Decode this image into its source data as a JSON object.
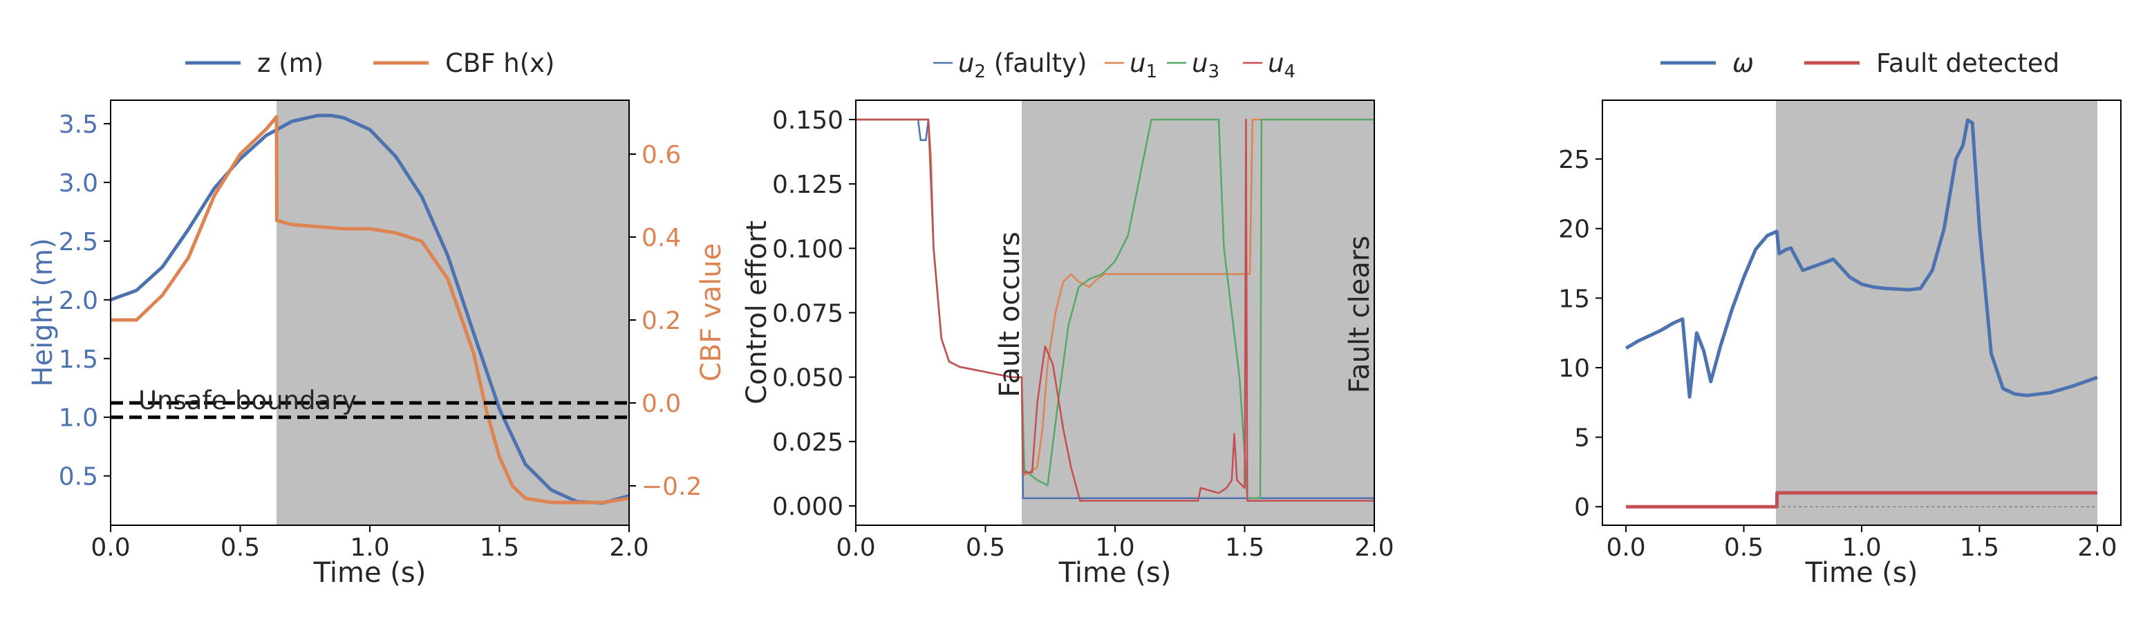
{
  "colors": {
    "blue": "#4c72b0",
    "orange": "#dd8452",
    "green": "#55a868",
    "red": "#c44e52",
    "shade": "#bfbfbf",
    "black": "#000000"
  },
  "chart_data": [
    {
      "type": "line",
      "panel": "height-cbf",
      "xlabel": "Time (s)",
      "ylabel": "Height (m)",
      "ylabel_right": "CBF value",
      "xlim": [
        0.0,
        2.0
      ],
      "ylim": [
        0.08,
        3.7
      ],
      "ylim_right": [
        -0.295,
        0.73
      ],
      "x_ticks": [
        "0.0",
        "0.5",
        "1.0",
        "1.5",
        "2.0"
      ],
      "y_ticks": [
        "0.5",
        "1.0",
        "1.5",
        "2.0",
        "2.5",
        "3.0",
        "3.5"
      ],
      "y_ticks_right": [
        "−0.2",
        "0.0",
        "0.2",
        "0.4",
        "0.6"
      ],
      "legend": {
        "placement": "top",
        "entries": [
          "z (m)",
          "CBF h(x)"
        ]
      },
      "shaded_region": [
        0.64,
        2.0
      ],
      "annotation": "Unsafe boundary",
      "series": [
        {
          "name": "z (m)",
          "axis": "left",
          "color": "blue",
          "x": [
            0.0,
            0.1,
            0.2,
            0.3,
            0.4,
            0.5,
            0.6,
            0.7,
            0.8,
            0.85,
            0.9,
            1.0,
            1.1,
            1.2,
            1.3,
            1.4,
            1.5,
            1.6,
            1.7,
            1.8,
            1.9,
            2.0
          ],
          "y": [
            2.0,
            2.08,
            2.28,
            2.6,
            2.95,
            3.2,
            3.4,
            3.52,
            3.57,
            3.57,
            3.55,
            3.45,
            3.22,
            2.88,
            2.38,
            1.72,
            1.07,
            0.6,
            0.38,
            0.28,
            0.27,
            0.33
          ]
        },
        {
          "name": "CBF h(x)",
          "axis": "right",
          "color": "orange",
          "x": [
            0.0,
            0.1,
            0.2,
            0.3,
            0.4,
            0.5,
            0.6,
            0.64,
            0.641,
            0.7,
            0.8,
            0.9,
            1.0,
            1.1,
            1.2,
            1.3,
            1.4,
            1.45,
            1.5,
            1.55,
            1.6,
            1.7,
            1.8,
            1.9,
            2.0
          ],
          "y": [
            0.2,
            0.2,
            0.26,
            0.35,
            0.5,
            0.6,
            0.66,
            0.69,
            0.44,
            0.43,
            0.425,
            0.42,
            0.42,
            0.41,
            0.39,
            0.3,
            0.12,
            -0.02,
            -0.13,
            -0.2,
            -0.23,
            -0.24,
            -0.24,
            -0.24,
            -0.23
          ]
        },
        {
          "name": "Unsafe boundary (z = 1.0)",
          "axis": "left",
          "color": "black",
          "dashed": true,
          "x": [
            0.0,
            2.0
          ],
          "y": [
            1.0,
            1.0
          ]
        },
        {
          "name": "Unsafe boundary (h = 0)",
          "axis": "right",
          "color": "black",
          "dashed": true,
          "x": [
            0.0,
            2.0
          ],
          "y": [
            0.0,
            0.0
          ]
        }
      ]
    },
    {
      "type": "line",
      "panel": "control-effort",
      "xlabel": "Time (s)",
      "ylabel": "Control effort",
      "xlim": [
        0.0,
        2.0
      ],
      "ylim": [
        -0.0075,
        0.1575
      ],
      "x_ticks": [
        "0.0",
        "0.5",
        "1.0",
        "1.5",
        "2.0"
      ],
      "y_ticks": [
        "0.000",
        "0.025",
        "0.050",
        "0.075",
        "0.100",
        "0.125",
        "0.150"
      ],
      "legend": {
        "placement": "top",
        "entries": [
          "u2 (faulty)",
          "u1",
          "u3",
          "u4"
        ]
      },
      "shaded_region": [
        0.64,
        2.0
      ],
      "annotations": [
        "Fault occurs",
        "Fault clears"
      ],
      "series": [
        {
          "name": "u2 (faulty)",
          "color": "blue",
          "x": [
            0.0,
            0.24,
            0.25,
            0.27,
            0.28,
            0.3,
            0.33,
            0.36,
            0.4,
            0.5,
            0.6,
            0.64,
            0.645,
            0.8,
            1.0,
            1.5,
            2.0
          ],
          "y": [
            0.15,
            0.15,
            0.142,
            0.142,
            0.15,
            0.1,
            0.065,
            0.056,
            0.054,
            0.052,
            0.05,
            0.05,
            0.003,
            0.003,
            0.003,
            0.003,
            0.003
          ]
        },
        {
          "name": "u1",
          "color": "orange",
          "x": [
            0.0,
            0.28,
            0.29,
            0.3,
            0.33,
            0.36,
            0.4,
            0.5,
            0.6,
            0.64,
            0.65,
            0.7,
            0.72,
            0.74,
            0.77,
            0.8,
            0.83,
            0.86,
            0.9,
            0.93,
            0.96,
            1.0,
            1.52,
            1.53,
            2.0
          ],
          "y": [
            0.15,
            0.15,
            0.135,
            0.1,
            0.065,
            0.056,
            0.054,
            0.052,
            0.05,
            0.05,
            0.012,
            0.015,
            0.03,
            0.055,
            0.075,
            0.087,
            0.09,
            0.087,
            0.085,
            0.088,
            0.09,
            0.09,
            0.09,
            0.15,
            0.15
          ]
        },
        {
          "name": "u3",
          "color": "green",
          "x": [
            0.0,
            0.28,
            0.29,
            0.3,
            0.33,
            0.36,
            0.4,
            0.5,
            0.6,
            0.64,
            0.65,
            0.7,
            0.74,
            0.78,
            0.82,
            0.86,
            0.9,
            0.95,
            1.0,
            1.05,
            1.1,
            1.14,
            1.4,
            1.42,
            1.45,
            1.48,
            1.5,
            1.51,
            1.56,
            1.565,
            2.0
          ],
          "y": [
            0.15,
            0.15,
            0.128,
            0.1,
            0.065,
            0.056,
            0.054,
            0.052,
            0.05,
            0.05,
            0.014,
            0.01,
            0.008,
            0.04,
            0.07,
            0.085,
            0.088,
            0.09,
            0.095,
            0.105,
            0.13,
            0.15,
            0.15,
            0.1,
            0.075,
            0.05,
            0.02,
            0.003,
            0.003,
            0.15,
            0.15
          ]
        },
        {
          "name": "u4",
          "color": "red",
          "x": [
            0.0,
            0.28,
            0.29,
            0.3,
            0.33,
            0.36,
            0.4,
            0.5,
            0.6,
            0.64,
            0.645,
            0.68,
            0.7,
            0.73,
            0.76,
            0.8,
            0.83,
            0.865,
            0.87,
            1.32,
            1.33,
            1.4,
            1.43,
            1.45,
            1.46,
            1.47,
            1.48,
            1.5,
            1.505,
            1.51,
            2.0
          ],
          "y": [
            0.15,
            0.15,
            0.125,
            0.1,
            0.065,
            0.056,
            0.054,
            0.052,
            0.05,
            0.05,
            0.013,
            0.013,
            0.04,
            0.062,
            0.055,
            0.03,
            0.015,
            0.002,
            0.002,
            0.002,
            0.007,
            0.005,
            0.007,
            0.01,
            0.028,
            0.01,
            0.009,
            0.007,
            0.15,
            0.002,
            0.002
          ]
        }
      ]
    },
    {
      "type": "line",
      "panel": "omega",
      "xlabel": "Time (s)",
      "xlim": [
        -0.1,
        2.1
      ],
      "ylim": [
        -1.33,
        29.23
      ],
      "x_ticks": [
        "0.0",
        "0.5",
        "1.0",
        "1.5",
        "2.0"
      ],
      "y_ticks": [
        "0",
        "5",
        "10",
        "15",
        "20",
        "25"
      ],
      "legend": {
        "placement": "top",
        "entries": [
          "ω",
          "Fault detected"
        ]
      },
      "shaded_region": [
        0.64,
        2.0
      ],
      "series": [
        {
          "name": "ω",
          "color": "blue",
          "x": [
            0.0,
            0.05,
            0.1,
            0.15,
            0.2,
            0.24,
            0.27,
            0.3,
            0.33,
            0.36,
            0.4,
            0.45,
            0.5,
            0.55,
            0.6,
            0.64,
            0.65,
            0.68,
            0.7,
            0.75,
            0.8,
            0.85,
            0.88,
            0.95,
            1.0,
            1.05,
            1.1,
            1.2,
            1.25,
            1.3,
            1.35,
            1.4,
            1.43,
            1.45,
            1.47,
            1.5,
            1.55,
            1.6,
            1.65,
            1.7,
            1.8,
            1.9,
            2.0
          ],
          "y": [
            11.4,
            11.9,
            12.3,
            12.7,
            13.2,
            13.5,
            7.9,
            12.5,
            11.2,
            9.0,
            11.5,
            14.2,
            16.5,
            18.5,
            19.5,
            19.8,
            18.2,
            18.5,
            18.6,
            17.0,
            17.3,
            17.6,
            17.8,
            16.5,
            16.0,
            15.8,
            15.7,
            15.6,
            15.7,
            17.0,
            20.0,
            25.0,
            26.0,
            27.8,
            27.6,
            20.0,
            11.0,
            8.5,
            8.1,
            8.0,
            8.2,
            8.7,
            9.3
          ]
        },
        {
          "name": "Fault detected",
          "color": "red",
          "x": [
            0.0,
            0.64,
            0.641,
            2.0
          ],
          "y": [
            0.0,
            0.0,
            1.0,
            1.0
          ]
        },
        {
          "name": "zero reference",
          "color": "gray",
          "dashed": true,
          "x": [
            0.64,
            2.0
          ],
          "y": [
            0.0,
            0.0
          ]
        }
      ]
    }
  ]
}
